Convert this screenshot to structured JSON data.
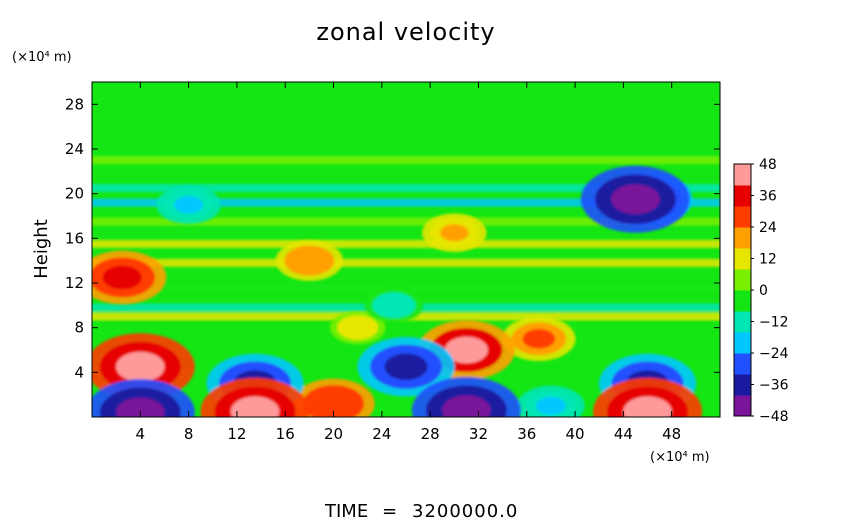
{
  "chart_data": {
    "type": "heatmap",
    "title": "zonal velocity",
    "xlabel": "",
    "ylabel": "Height",
    "x_unit": "(×10⁴ m)",
    "y_unit": "(×10⁴ m)",
    "xlim": [
      0,
      52
    ],
    "ylim": [
      0,
      30
    ],
    "x_ticks": [
      4,
      8,
      12,
      16,
      20,
      24,
      28,
      32,
      36,
      40,
      44,
      48
    ],
    "y_ticks": [
      4,
      8,
      12,
      16,
      20,
      24,
      28
    ],
    "grid": false,
    "colorbar": {
      "ticks": [
        48,
        36,
        24,
        12,
        0,
        -12,
        -24,
        -36,
        -48
      ],
      "tick_labels": [
        "48",
        "36",
        "24",
        "12",
        "0",
        "−12",
        "−24",
        "−36",
        "−48"
      ],
      "range": [
        -48,
        48
      ],
      "placement": "right"
    },
    "colormap": [
      "#7a149a",
      "#1a1aa0",
      "#2050ff",
      "#00c8ff",
      "#00e6b4",
      "#14e614",
      "#78f000",
      "#e6e600",
      "#ffa000",
      "#ff3c00",
      "#e60000",
      "#ff9a9a"
    ],
    "velocity_features": [
      {
        "x": 4,
        "y": 4.5,
        "value": 48
      },
      {
        "x": 13.5,
        "y": 0.5,
        "value": 48
      },
      {
        "x": 46,
        "y": 0.5,
        "value": 48
      },
      {
        "x": 4,
        "y": 0.4,
        "value": -48
      },
      {
        "x": 31,
        "y": 0.6,
        "value": -48
      },
      {
        "x": 45,
        "y": 19.5,
        "value": -48
      },
      {
        "x": 31,
        "y": 6,
        "value": 40
      },
      {
        "x": 13.5,
        "y": 3,
        "value": -40
      },
      {
        "x": 26,
        "y": 4.5,
        "value": -40
      },
      {
        "x": 46,
        "y": 3,
        "value": -40
      },
      {
        "x": 46,
        "y": 19.5,
        "value": -35
      },
      {
        "x": 2.5,
        "y": 12.5,
        "value": 34
      },
      {
        "x": 20,
        "y": 1.2,
        "value": 30
      },
      {
        "x": 37,
        "y": 7,
        "value": 24
      },
      {
        "x": 18,
        "y": 14,
        "value": 20
      },
      {
        "x": 30,
        "y": 16.5,
        "value": 18
      },
      {
        "x": 38,
        "y": 1,
        "value": -20
      },
      {
        "x": 22,
        "y": 8,
        "value": 12
      },
      {
        "x": 8,
        "y": 19,
        "value": -18
      },
      {
        "x": 25,
        "y": 10,
        "value": -14
      }
    ],
    "horizontal_bands": [
      {
        "y": 20.5,
        "value": -12
      },
      {
        "y": 19.2,
        "value": -20
      },
      {
        "y": 17.5,
        "value": 6
      },
      {
        "y": 15.5,
        "value": 8
      },
      {
        "y": 13.8,
        "value": 10
      },
      {
        "y": 11.5,
        "value": -6
      },
      {
        "y": 9.8,
        "value": -16
      },
      {
        "y": 9.0,
        "value": 12
      },
      {
        "y": 23.0,
        "value": 3
      }
    ]
  },
  "footer": {
    "time_label": "TIME",
    "time_equals": "=",
    "time_value": "3200000.0"
  }
}
